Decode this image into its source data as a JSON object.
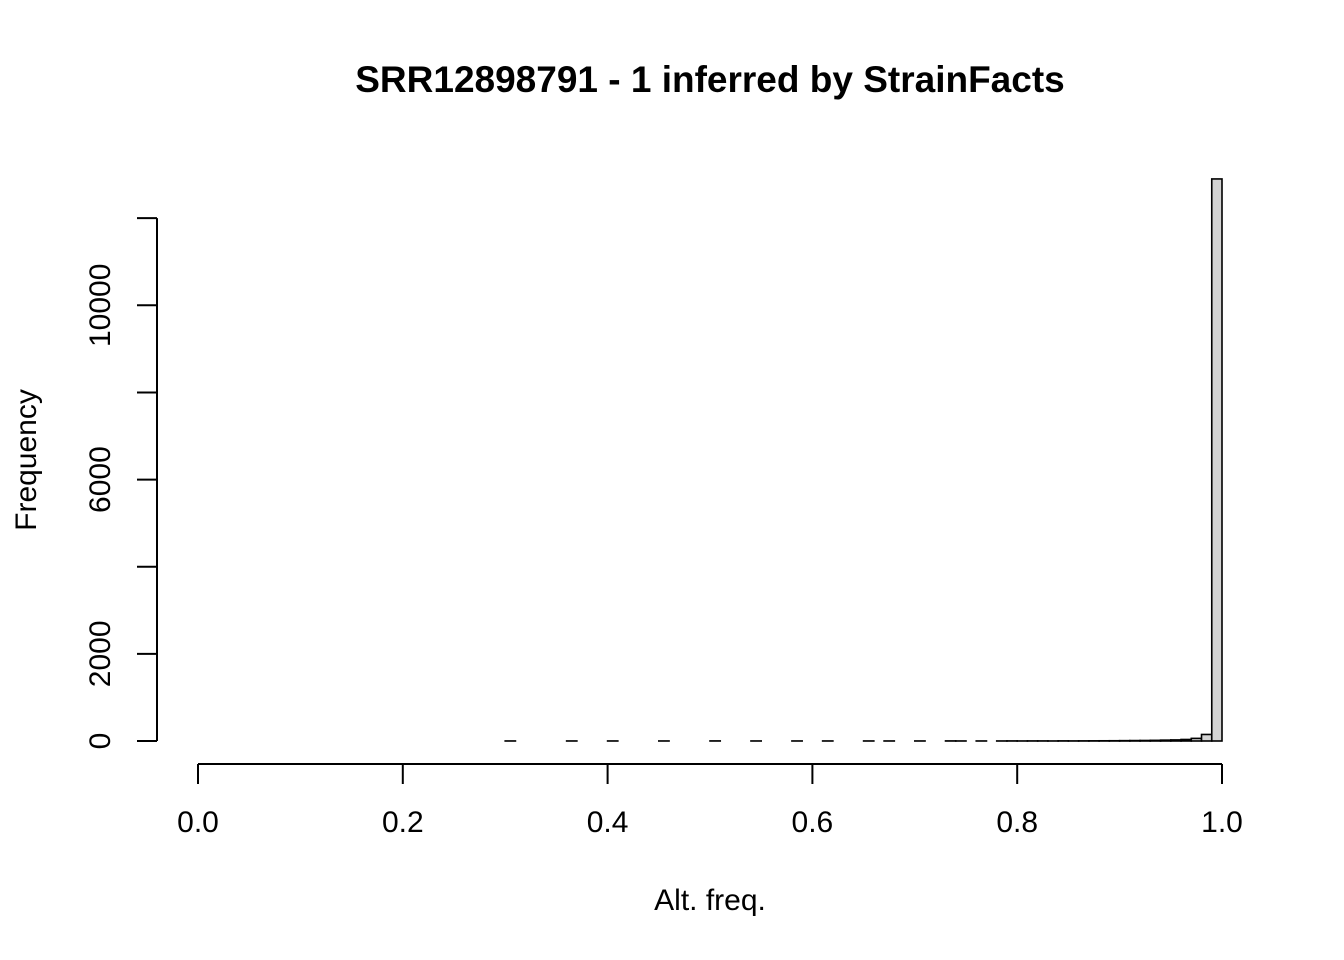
{
  "chart_data": {
    "type": "bar",
    "title": "SRR12898791 - 1 inferred by StrainFacts",
    "xlabel": "Alt. freq.",
    "ylabel": "Frequency",
    "xlim": [
      0.0,
      1.0
    ],
    "ylim": [
      0,
      12000
    ],
    "x_ticks": [
      "0.0",
      "0.2",
      "0.4",
      "0.6",
      "0.8",
      "1.0"
    ],
    "y_ticks": [
      "0",
      "2000",
      "6000",
      "10000"
    ],
    "y_tick_values": [
      0,
      2000,
      4000,
      6000,
      8000,
      10000,
      12000
    ],
    "bin_width": 0.01,
    "categories": [
      "0.30-0.31",
      "0.31-0.32",
      "0.32-0.33",
      "0.33-0.34",
      "0.34-0.35",
      "0.35-0.36",
      "0.36-0.37",
      "0.37-0.38",
      "0.38-0.39",
      "0.39-0.40",
      "0.40-0.41",
      "0.41-0.42",
      "0.42-0.43",
      "0.43-0.44",
      "0.44-0.45",
      "0.45-0.46",
      "0.46-0.47",
      "0.47-0.48",
      "0.48-0.49",
      "0.49-0.50",
      "0.50-0.51",
      "0.51-0.52",
      "0.52-0.53",
      "0.53-0.54",
      "0.54-0.55",
      "0.55-0.56",
      "0.56-0.57",
      "0.57-0.58",
      "0.58-0.59",
      "0.59-0.60",
      "0.60-0.61",
      "0.61-0.62",
      "0.62-0.63",
      "0.63-0.64",
      "0.64-0.65",
      "0.65-0.66",
      "0.66-0.67",
      "0.67-0.68",
      "0.68-0.69",
      "0.69-0.70",
      "0.70-0.71",
      "0.71-0.72",
      "0.72-0.73",
      "0.73-0.74",
      "0.74-0.75",
      "0.75-0.76",
      "0.76-0.77",
      "0.77-0.78",
      "0.78-0.79",
      "0.79-0.80",
      "0.80-0.81",
      "0.81-0.82",
      "0.82-0.83",
      "0.83-0.84",
      "0.84-0.85",
      "0.85-0.86",
      "0.86-0.87",
      "0.87-0.88",
      "0.88-0.89",
      "0.89-0.90",
      "0.90-0.91",
      "0.91-0.92",
      "0.92-0.93",
      "0.93-0.94",
      "0.94-0.95",
      "0.95-0.96",
      "0.96-0.97",
      "0.97-0.98",
      "0.98-0.99",
      "0.99-1.00"
    ],
    "bin_starts": [
      0.3,
      0.31,
      0.32,
      0.33,
      0.34,
      0.35,
      0.36,
      0.37,
      0.38,
      0.39,
      0.4,
      0.41,
      0.42,
      0.43,
      0.44,
      0.45,
      0.46,
      0.47,
      0.48,
      0.49,
      0.5,
      0.51,
      0.52,
      0.53,
      0.54,
      0.55,
      0.56,
      0.57,
      0.58,
      0.59,
      0.6,
      0.61,
      0.62,
      0.63,
      0.64,
      0.65,
      0.66,
      0.67,
      0.68,
      0.69,
      0.7,
      0.71,
      0.72,
      0.73,
      0.74,
      0.75,
      0.76,
      0.77,
      0.78,
      0.79,
      0.8,
      0.81,
      0.82,
      0.83,
      0.84,
      0.85,
      0.86,
      0.87,
      0.88,
      0.89,
      0.9,
      0.91,
      0.92,
      0.93,
      0.94,
      0.95,
      0.96,
      0.97,
      0.98,
      0.99
    ],
    "values": [
      1,
      0,
      0,
      0,
      0,
      0,
      1,
      0,
      0,
      0,
      1,
      0,
      0,
      0,
      0,
      1,
      0,
      0,
      0,
      0,
      2,
      0,
      0,
      0,
      1,
      0,
      0,
      0,
      1,
      0,
      0,
      1,
      0,
      0,
      0,
      1,
      0,
      1,
      0,
      0,
      1,
      0,
      0,
      2,
      1,
      0,
      1,
      0,
      1,
      2,
      1,
      2,
      2,
      1,
      3,
      2,
      3,
      4,
      5,
      6,
      8,
      10,
      12,
      15,
      20,
      25,
      35,
      60,
      150,
      12900
    ],
    "grid": false,
    "legend": "none"
  }
}
